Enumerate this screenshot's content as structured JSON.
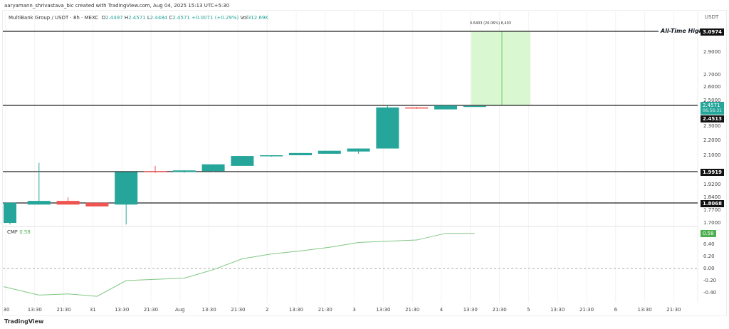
{
  "header": {
    "credit": "aaryamann_shrivastava_bic created with TradingView.com, Aug 04, 2025 15:13 UTC+5:30",
    "symbol": "MultiBank Group / USDT · 8h · MEXC",
    "o": "2.4497",
    "h": "2.4571",
    "l": "2.4484",
    "c": "2.4571",
    "chg": "+0.0071 (+0.29%)",
    "vol": "312.69K"
  },
  "price_axis": {
    "currency": "USDT",
    "ticks": [
      "2.9000",
      "2.7000",
      "2.6000",
      "2.5000",
      "2.3000",
      "2.2000",
      "2.1000",
      "1.9200",
      "1.8400",
      "1.7700",
      "1.7000"
    ],
    "tags": {
      "ath": "3.0974",
      "last": "2.4571",
      "countdown": "06:56:31",
      "level1": "2.4513",
      "level2": "1.9919",
      "level3": "1.8068"
    }
  },
  "annotations": {
    "ath_label": "All-Time High",
    "measure": "0.6403 (26.06%) 6,403"
  },
  "colors": {
    "up": "#26a69a",
    "down": "#ef5350",
    "cmf": "#81c784",
    "measure_fill": "#d9f7d0"
  },
  "candles": [
    {
      "o": 1.7,
      "h": 1.81,
      "l": 1.69,
      "c": 1.81
    },
    {
      "o": 1.8,
      "h": 2.05,
      "l": 1.8,
      "c": 1.82
    },
    {
      "o": 1.82,
      "h": 1.84,
      "l": 1.8,
      "c": 1.8
    },
    {
      "o": 1.81,
      "h": 1.81,
      "l": 1.79,
      "c": 1.79
    },
    {
      "o": 1.8,
      "h": 1.99,
      "l": 1.69,
      "c": 1.99
    },
    {
      "o": 1.995,
      "h": 2.03,
      "l": 1.985,
      "c": 1.99
    },
    {
      "o": 1.99,
      "h": 2.0,
      "l": 1.985,
      "c": 2.0
    },
    {
      "o": 1.995,
      "h": 2.04,
      "l": 1.99,
      "c": 2.04
    },
    {
      "o": 2.03,
      "h": 2.095,
      "l": 2.03,
      "c": 2.095
    },
    {
      "o": 2.095,
      "h": 2.1,
      "l": 2.09,
      "c": 2.1
    },
    {
      "o": 2.1,
      "h": 2.115,
      "l": 2.1,
      "c": 2.115
    },
    {
      "o": 2.11,
      "h": 2.13,
      "l": 2.11,
      "c": 2.13
    },
    {
      "o": 2.125,
      "h": 2.145,
      "l": 2.11,
      "c": 2.145
    },
    {
      "o": 2.145,
      "h": 2.46,
      "l": 2.145,
      "c": 2.445
    },
    {
      "o": 2.445,
      "h": 2.45,
      "l": 2.435,
      "c": 2.44
    },
    {
      "o": 2.43,
      "h": 2.46,
      "l": 2.43,
      "c": 2.46
    },
    {
      "o": 2.4497,
      "h": 2.4571,
      "l": 2.4484,
      "c": 2.4571
    }
  ],
  "cmf": {
    "label": "CMF",
    "value": "0.58",
    "ticks": [
      "0.40",
      "0.20",
      "0.00",
      "-0.20",
      "-0.40"
    ],
    "series": [
      -0.3,
      -0.44,
      -0.42,
      -0.46,
      -0.2,
      -0.18,
      -0.16,
      -0.02,
      0.16,
      0.24,
      0.29,
      0.35,
      0.43,
      0.45,
      0.47,
      0.58,
      0.58
    ]
  },
  "time_axis": [
    "30",
    "13:30",
    "21:30",
    "31",
    "13:30",
    "21:30",
    "Aug",
    "13:30",
    "21:30",
    "2",
    "13:30",
    "21:30",
    "3",
    "13:30",
    "21:30",
    "4",
    "13:30",
    "21:30",
    "5",
    "13:30",
    "21:30",
    "6",
    "13:30",
    "21:30"
  ],
  "footer": {
    "logo": "TradingView"
  }
}
